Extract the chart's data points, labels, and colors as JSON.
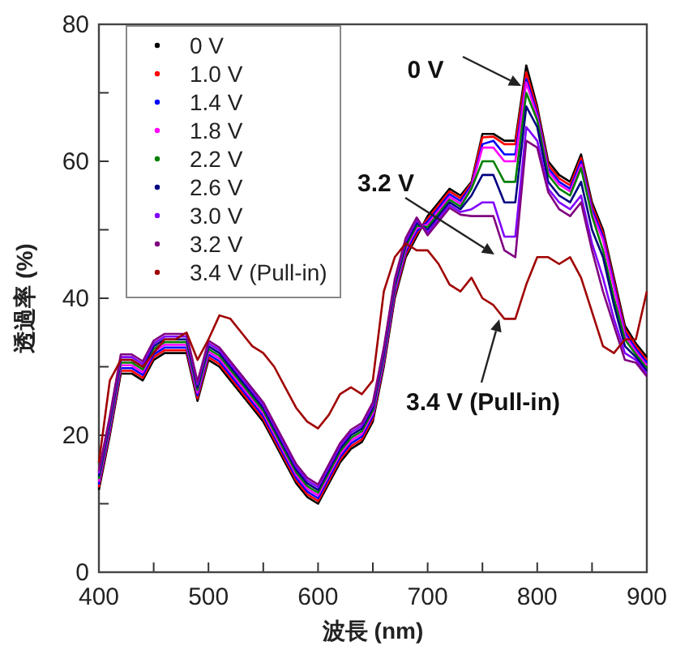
{
  "chart_data": {
    "type": "line",
    "xlabel": "波長 (nm)",
    "ylabel": "透過率 (%)",
    "x": [
      400,
      410,
      420,
      430,
      440,
      450,
      460,
      470,
      480,
      490,
      500,
      510,
      520,
      530,
      540,
      550,
      560,
      570,
      580,
      590,
      600,
      610,
      620,
      630,
      640,
      650,
      660,
      670,
      680,
      690,
      700,
      710,
      720,
      730,
      740,
      750,
      760,
      770,
      780,
      790,
      800,
      810,
      820,
      830,
      840,
      850,
      860,
      870,
      880,
      890,
      900
    ],
    "xlim": [
      400,
      900
    ],
    "ylim": [
      0,
      80
    ],
    "xticks": [
      400,
      {
        "value": 450,
        "label": null
      },
      500,
      {
        "value": 550,
        "label": null
      },
      600,
      {
        "value": 650,
        "label": null
      },
      700,
      {
        "value": 750,
        "label": null
      },
      800,
      {
        "value": 850,
        "label": null
      },
      900
    ],
    "yticks": [
      0,
      {
        "value": 10,
        "label": null
      },
      20,
      {
        "value": 30,
        "label": null
      },
      40,
      {
        "value": 50,
        "label": null
      },
      60,
      {
        "value": 70,
        "label": null
      },
      80
    ],
    "legend": "top left",
    "grid": false,
    "series": [
      {
        "name": "0 V",
        "color": "#000000",
        "values": [
          12,
          20,
          29,
          29,
          28,
          31,
          32,
          32,
          32,
          25,
          31,
          30,
          28,
          26,
          24,
          22,
          19,
          16,
          13,
          11,
          10,
          13,
          16,
          18,
          19,
          22,
          30,
          40,
          46,
          49,
          52,
          54,
          56,
          55,
          57,
          64,
          64,
          63,
          63,
          74,
          68,
          60,
          58,
          57,
          61,
          54,
          50,
          43,
          36,
          33.4,
          31.4
        ]
      },
      {
        "name": "1.0 V",
        "color": "#ff0000",
        "values": [
          12.4,
          20.4,
          29.4,
          29.4,
          28.4,
          31.4,
          32.4,
          32.4,
          32.4,
          25.4,
          31.4,
          30.4,
          28.4,
          26.4,
          24.4,
          22.4,
          19.4,
          16.4,
          13.4,
          11.4,
          10.4,
          13.4,
          16.4,
          18.4,
          19.4,
          22.4,
          30.4,
          40.4,
          46.4,
          49.4,
          51.6,
          53.6,
          55.6,
          54.6,
          56.8,
          63.5,
          63.6,
          62.5,
          62.5,
          73,
          67.5,
          59.5,
          57.5,
          56.5,
          60.5,
          53.5,
          49.5,
          42.5,
          35.5,
          33,
          31
        ]
      },
      {
        "name": "1.4 V",
        "color": "#0000ff",
        "values": [
          12.8,
          20.8,
          29.8,
          29.8,
          28.8,
          31.8,
          32.8,
          32.8,
          32.8,
          25.8,
          31.8,
          30.8,
          28.8,
          26.8,
          24.8,
          22.8,
          19.8,
          16.8,
          13.8,
          11.8,
          10.8,
          13.8,
          16.8,
          18.8,
          19.8,
          22.8,
          30.8,
          40.8,
          46.8,
          49.8,
          51.2,
          53.2,
          55.2,
          54.2,
          56.5,
          62.5,
          63,
          61,
          61,
          72,
          67,
          59,
          57,
          56,
          60,
          53,
          49,
          42,
          35,
          32.6,
          30.6
        ]
      },
      {
        "name": "1.8 V",
        "color": "#ff00ff",
        "values": [
          13.2,
          21.2,
          30.2,
          30.2,
          29.2,
          32.2,
          33.2,
          33.2,
          33.2,
          26.2,
          32.2,
          31.2,
          29.2,
          27.2,
          25.2,
          23.2,
          20.2,
          17.2,
          14.2,
          12.2,
          11.2,
          14.2,
          17.2,
          19.2,
          20.2,
          23.2,
          31.2,
          41.2,
          47.2,
          50.2,
          50.8,
          52.8,
          54.8,
          53.8,
          56.2,
          62,
          62,
          60,
          60,
          71.5,
          66.5,
          58.6,
          56.6,
          55.6,
          59.5,
          52.5,
          48.5,
          41.5,
          34.6,
          32.2,
          30.2
        ]
      },
      {
        "name": "2.2 V",
        "color": "#008000",
        "values": [
          13.6,
          21.6,
          30.6,
          30.6,
          29.6,
          32.6,
          33.6,
          33.6,
          33.6,
          26.6,
          32.6,
          31.6,
          29.6,
          27.6,
          25.6,
          23.6,
          20.6,
          17.6,
          14.6,
          12.6,
          11.6,
          14.6,
          17.6,
          19.6,
          20.6,
          23.6,
          31.6,
          41.6,
          47.6,
          50.6,
          50.4,
          52.4,
          54.4,
          53.4,
          56,
          60,
          60,
          57,
          57,
          70,
          66,
          58,
          56,
          55,
          59,
          52,
          47,
          40,
          34,
          31.8,
          29.8
        ]
      },
      {
        "name": "2.6 V",
        "color": "#000080",
        "values": [
          14,
          22,
          31,
          31,
          30,
          33,
          34,
          34,
          34,
          27,
          33,
          32,
          30,
          28,
          26,
          24,
          21,
          18,
          15,
          13,
          12,
          15,
          18,
          20,
          21,
          24,
          32,
          42,
          48,
          51,
          50,
          52,
          54,
          53,
          55,
          58,
          58,
          54,
          54,
          68,
          65,
          57,
          55,
          54,
          57,
          50,
          46,
          39,
          33,
          31.4,
          29.4
        ]
      },
      {
        "name": "3.0 V",
        "color": "#8000ff",
        "values": [
          14.4,
          22.4,
          31.4,
          31.4,
          30.4,
          33.4,
          34.4,
          34.4,
          34.4,
          27.4,
          33.4,
          32.4,
          30.4,
          28.4,
          26.4,
          24.4,
          21.4,
          18.4,
          15.4,
          13.4,
          12.4,
          15.4,
          18.4,
          20.4,
          21.4,
          24.4,
          32.4,
          42.4,
          48.4,
          51.4,
          49.6,
          51.6,
          53.6,
          52.6,
          53,
          54,
          54,
          49,
          49,
          65,
          63,
          56,
          54,
          53,
          55,
          48,
          43,
          37,
          32,
          31,
          29
        ]
      },
      {
        "name": "3.2 V",
        "color": "#800080",
        "values": [
          14.8,
          22.8,
          31.8,
          31.8,
          30.8,
          33.8,
          34.8,
          34.8,
          34.8,
          27.8,
          33.8,
          32.8,
          30.8,
          28.8,
          26.8,
          24.8,
          21.8,
          18.8,
          15.8,
          13.8,
          12.8,
          15.8,
          18.8,
          20.8,
          21.8,
          24.8,
          32.8,
          42.8,
          48.8,
          51.8,
          49.2,
          51.2,
          53.2,
          52.2,
          52,
          52,
          52,
          47,
          46,
          63,
          62,
          55.5,
          53,
          52,
          54,
          47,
          41,
          36,
          31,
          30.6,
          28.6
        ]
      },
      {
        "name": "3.4 V (Pull-in)",
        "color": "#a00000",
        "values": [
          16,
          28,
          31,
          31,
          30,
          32,
          34,
          34,
          35,
          31,
          34,
          37.5,
          37,
          35,
          33,
          32,
          30,
          27,
          24,
          22,
          21,
          23,
          26,
          27,
          26,
          28,
          41,
          46,
          48,
          47,
          47,
          45,
          42,
          41,
          43,
          40,
          39,
          37,
          37,
          42,
          46,
          46,
          45,
          46,
          43,
          38,
          33,
          32,
          34,
          34,
          41
        ]
      }
    ],
    "annotations": [
      "0 V",
      "3.2 V",
      "3.4 V (Pull-in)"
    ]
  }
}
